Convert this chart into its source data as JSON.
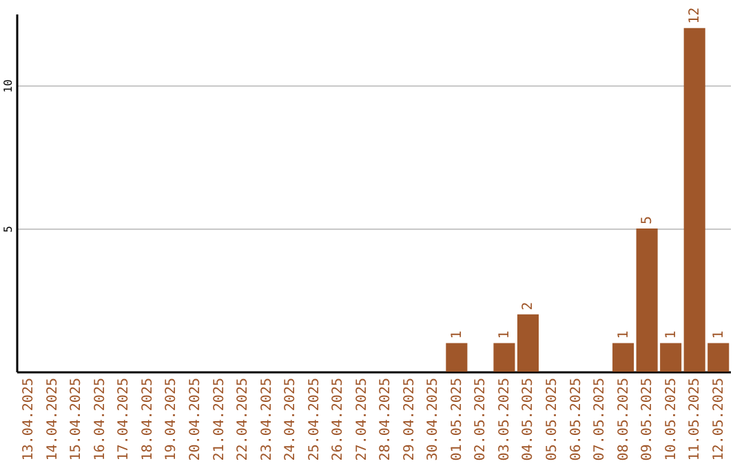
{
  "chart_data": {
    "type": "bar",
    "categories": [
      "13.04.2025",
      "14.04.2025",
      "15.04.2025",
      "16.04.2025",
      "17.04.2025",
      "18.04.2025",
      "19.04.2025",
      "20.04.2025",
      "21.04.2025",
      "22.04.2025",
      "23.04.2025",
      "24.04.2025",
      "25.04.2025",
      "26.04.2025",
      "27.04.2025",
      "28.04.2025",
      "29.04.2025",
      "30.04.2025",
      "01.05.2025",
      "02.05.2025",
      "03.05.2025",
      "04.05.2025",
      "05.05.2025",
      "06.05.2025",
      "07.05.2025",
      "08.05.2025",
      "09.05.2025",
      "10.05.2025",
      "11.05.2025",
      "12.05.2025"
    ],
    "values": [
      0,
      0,
      0,
      0,
      0,
      0,
      0,
      0,
      0,
      0,
      0,
      0,
      0,
      0,
      0,
      0,
      0,
      0,
      1,
      0,
      1,
      2,
      0,
      0,
      0,
      1,
      5,
      1,
      12,
      1
    ],
    "value_labels": [
      null,
      null,
      null,
      null,
      null,
      null,
      null,
      null,
      null,
      null,
      null,
      null,
      null,
      null,
      null,
      null,
      null,
      null,
      "1",
      null,
      "1",
      "2",
      null,
      null,
      null,
      "1",
      "5",
      "1",
      "12",
      "1"
    ],
    "color": "#a0572a",
    "ylim": [
      0,
      12.5
    ],
    "yticks": [
      5,
      10
    ],
    "grid": "y"
  }
}
